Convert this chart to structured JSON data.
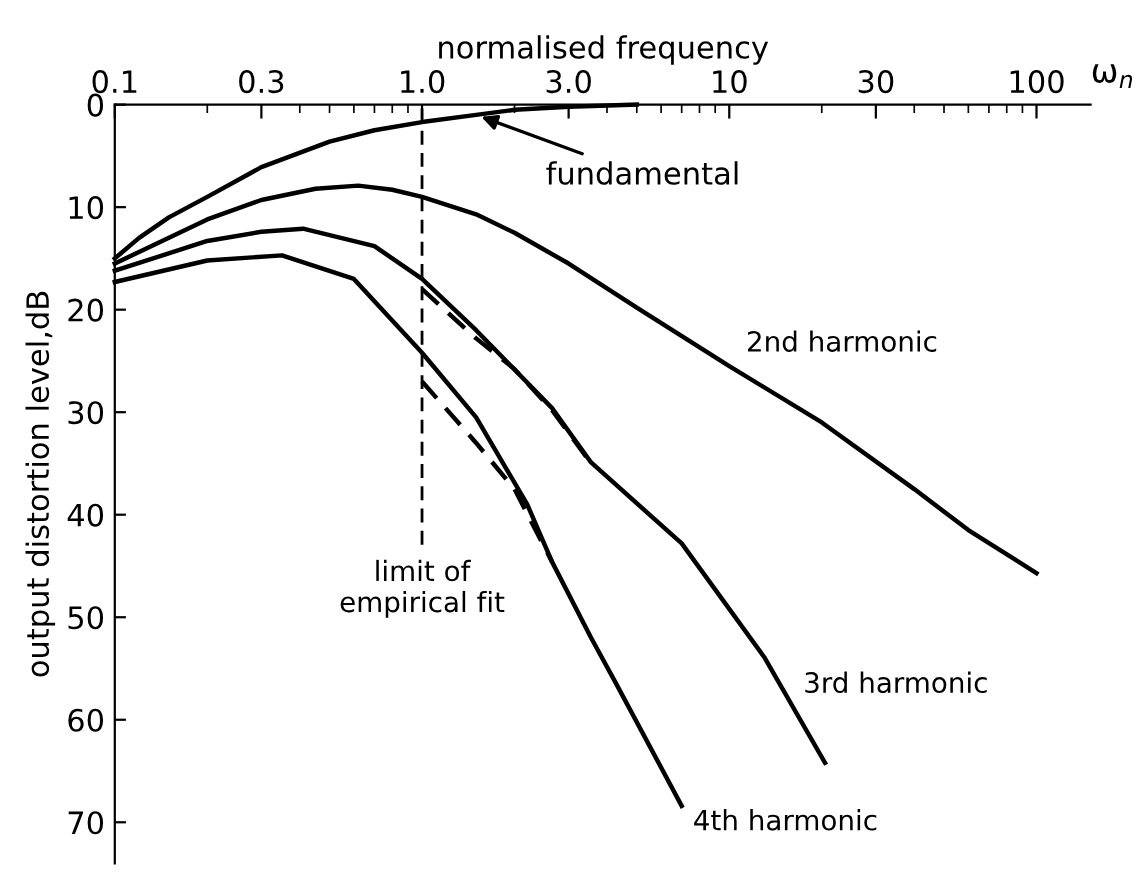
{
  "chart_data": {
    "type": "line",
    "xlabel": "normalised frequency",
    "ylabel": "output distortion level,dB",
    "log": "x",
    "grid": false,
    "legend": false,
    "marker": "none",
    "xlim": [
      0.1,
      150
    ],
    "ylim": [
      74,
      0
    ],
    "xticks": [
      0.1,
      0.3,
      {
        "value": 1,
        "label": "1.0"
      },
      {
        "value": 3,
        "label": "3.0"
      },
      10,
      30,
      100
    ],
    "yticks": [
      0,
      10,
      20,
      30,
      40,
      50,
      60,
      70
    ],
    "series": [
      {
        "color": "#000000",
        "line_style": "solid",
        "x": [
          0.1,
          0.12,
          0.15,
          0.2,
          0.3,
          0.5,
          0.7,
          1.0,
          1.5,
          2,
          3,
          5
        ],
        "values": [
          15,
          13,
          11,
          9,
          6.1,
          3.6,
          2.5,
          1.7,
          1.0,
          0.5,
          0.2,
          0
        ]
      },
      {
        "name": "2nd harmonic",
        "color": "#000000",
        "line_style": "solid",
        "x": [
          0.1,
          0.2,
          0.3,
          0.45,
          0.62,
          0.8,
          1.0,
          1.5,
          2,
          3,
          5,
          10,
          20,
          40,
          60,
          100
        ],
        "values": [
          15.5,
          11.2,
          9.3,
          8.2,
          7.9,
          8.3,
          9,
          10.7,
          12.5,
          15.5,
          19.8,
          25.5,
          31,
          37.5,
          41.5,
          45.7
        ]
      },
      {
        "name": "3rd harmonic",
        "color": "#000000",
        "line_style": "solid",
        "x": [
          0.1,
          0.2,
          0.3,
          0.41,
          0.7,
          1,
          1.5,
          2.65,
          3.55,
          7,
          13,
          20.5
        ],
        "values": [
          16.2,
          13.3,
          12.4,
          12.1,
          13.8,
          17,
          22,
          29.6,
          34.9,
          42.8,
          53.9,
          64.2
        ]
      },
      {
        "name": "4th harmonic",
        "color": "#000000",
        "line_style": "solid",
        "x": [
          0.1,
          0.2,
          0.35,
          0.6,
          1,
          1.5,
          2.2,
          2.65,
          3.55,
          4.27,
          7
        ],
        "values": [
          17.3,
          15.2,
          14.7,
          17,
          24.2,
          30.5,
          39,
          44.6,
          52,
          56.4,
          68.4
        ]
      },
      {
        "color": "#000000",
        "line_style": "dashed",
        "x": [
          1,
          1.5,
          2,
          2.65,
          3.55
        ],
        "values": [
          18,
          22.8,
          25.8,
          29.8,
          35
        ]
      },
      {
        "color": "#000000",
        "line_style": "dashed",
        "x": [
          1,
          1.5,
          2,
          2.65
        ],
        "values": [
          27,
          33,
          37.5,
          44.6
        ]
      }
    ],
    "ref_lines": [
      {
        "axis": "x",
        "value": 1,
        "label": "limit of\nempirical fit",
        "color": "#000000",
        "line_style": "dashed"
      }
    ],
    "annotations": [
      {
        "text": "fundamental",
        "x": 1.5,
        "y": 1.0
      },
      "ω$_{n}$"
    ]
  }
}
